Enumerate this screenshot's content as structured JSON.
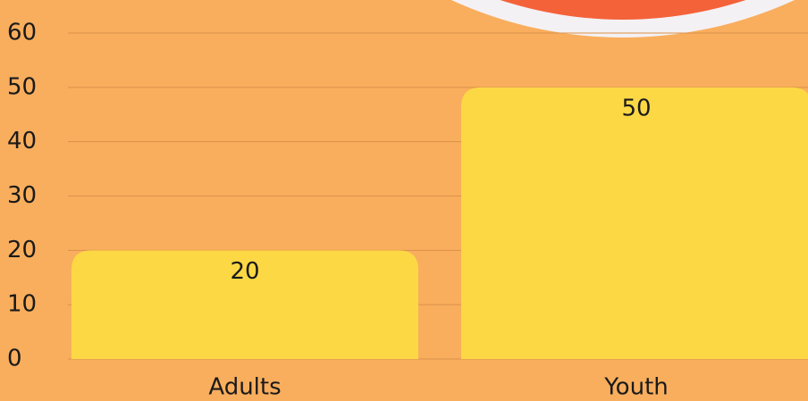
{
  "chart_data": {
    "type": "bar",
    "categories": [
      "Adults",
      "Youth"
    ],
    "values": [
      20,
      50
    ],
    "color": "#fdd845",
    "ylim": [
      0,
      60
    ],
    "yticks": [
      0,
      10,
      20,
      30,
      40,
      50,
      60
    ],
    "grid": true
  }
}
